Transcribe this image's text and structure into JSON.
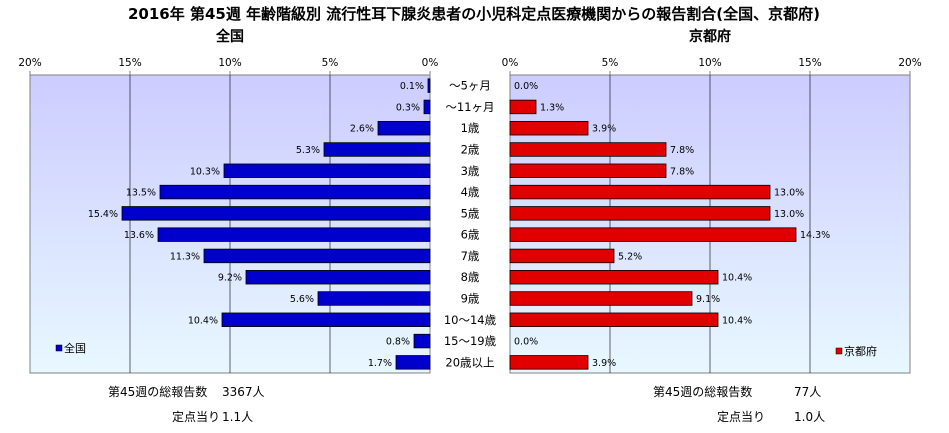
{
  "title": "2016年 第45週 年齢階級別 流行性耳下腺炎患者の小児科定点医療機関からの報告割合(全国、京都府)",
  "colors": {
    "national": "#0000cc",
    "kyoto": "#e00000",
    "bg_top": "#ccccff",
    "bg_bottom": "#e8f8ff"
  },
  "chart_data": [
    {
      "type": "bar",
      "title": "全国",
      "orientation": "horizontal",
      "direction": "right-to-left",
      "categories": [
        "～5ヶ月",
        "～11ヶ月",
        "1歳",
        "2歳",
        "3歳",
        "4歳",
        "5歳",
        "6歳",
        "7歳",
        "8歳",
        "9歳",
        "10～14歳",
        "15～19歳",
        "20歳以上"
      ],
      "series": [
        {
          "name": "全国",
          "values": [
            0.1,
            0.3,
            2.6,
            5.3,
            10.3,
            13.5,
            15.4,
            13.6,
            11.3,
            9.2,
            5.6,
            10.4,
            0.8,
            1.7
          ]
        }
      ],
      "data_labels": [
        "0.1%",
        "0.3%",
        "2.6%",
        "5.3%",
        "10.3%",
        "13.5%",
        "15.4%",
        "13.6%",
        "11.3%",
        "9.2%",
        "5.6%",
        "10.4%",
        "0.8%",
        "1.7%"
      ],
      "xlim": [
        0,
        20
      ],
      "tick_labels": [
        "20%",
        "15%",
        "10%",
        "5%",
        "0%"
      ],
      "legend": "bottom-left",
      "grid": true
    },
    {
      "type": "bar",
      "title": "京都府",
      "orientation": "horizontal",
      "direction": "left-to-right",
      "categories": [
        "～5ヶ月",
        "～11ヶ月",
        "1歳",
        "2歳",
        "3歳",
        "4歳",
        "5歳",
        "6歳",
        "7歳",
        "8歳",
        "9歳",
        "10～14歳",
        "15～19歳",
        "20歳以上"
      ],
      "series": [
        {
          "name": "京都府",
          "values": [
            0.0,
            1.3,
            3.9,
            7.8,
            7.8,
            13.0,
            13.0,
            14.3,
            5.2,
            10.4,
            9.1,
            10.4,
            0.0,
            3.9
          ]
        }
      ],
      "data_labels": [
        "0.0%",
        "1.3%",
        "3.9%",
        "7.8%",
        "7.8%",
        "13.0%",
        "13.0%",
        "14.3%",
        "5.2%",
        "10.4%",
        "9.1%",
        "10.4%",
        "0.0%",
        "3.9%"
      ],
      "xlim": [
        0,
        20
      ],
      "tick_labels": [
        "0%",
        "5%",
        "10%",
        "15%",
        "20%"
      ],
      "legend": "bottom-right",
      "grid": true
    }
  ],
  "footer": {
    "left": {
      "total_label": "第45週の総報告数",
      "total_value": "3367人",
      "per_label": "定点当り",
      "per_value": "1.1人"
    },
    "right": {
      "total_label": "第45週の総報告数",
      "total_value": "77人",
      "per_label": "定点当り",
      "per_value": "1.0人"
    }
  }
}
